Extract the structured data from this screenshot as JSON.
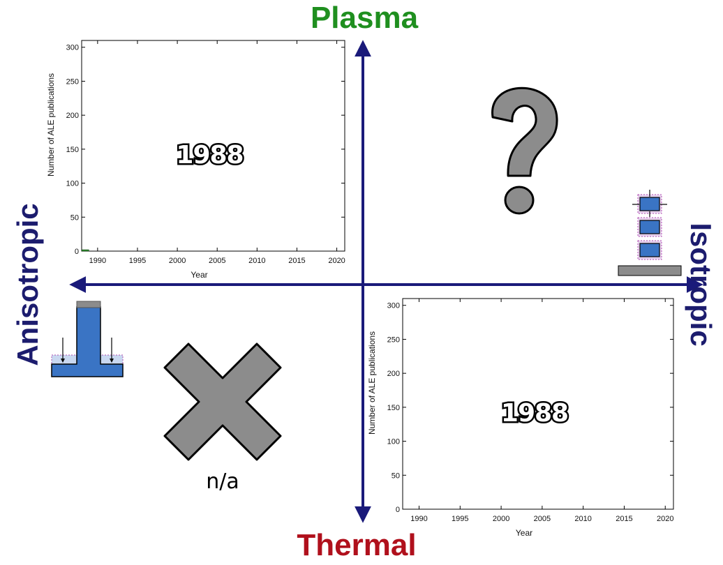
{
  "quadrant_labels": {
    "top": "Plasma",
    "bottom": "Thermal",
    "left": "Anisotropic",
    "right": "Isotropic"
  },
  "colors": {
    "axis_arrow": "#1a1a7a",
    "plasma": "#1f8f1f",
    "thermal": "#b0101c",
    "directional": "#1c1c6e",
    "symbol_gray": "#8c8c8c",
    "film_blue": "#3a74c4",
    "bar_plasma": "#2e8b2e"
  },
  "quadrant_symbols": {
    "top_right": "question-mark",
    "bottom_left": "cross-mark",
    "bottom_left_caption": "n/a"
  },
  "chart_data": [
    {
      "quadrant": "plasma-anisotropic",
      "type": "bar",
      "overlay_text": "1988",
      "xlabel": "Year",
      "ylabel": "Number of ALE publications",
      "xlim": [
        1988,
        2021
      ],
      "ylim": [
        0,
        310
      ],
      "xticks": [
        1990,
        1995,
        2000,
        2005,
        2010,
        2015,
        2020
      ],
      "yticks": [
        0,
        50,
        100,
        150,
        200,
        250,
        300
      ],
      "x": [
        1988
      ],
      "values": [
        1
      ],
      "grid": false
    },
    {
      "quadrant": "thermal-isotropic",
      "type": "bar",
      "overlay_text": "1988",
      "xlabel": "Year",
      "ylabel": "Number of ALE publications",
      "xlim": [
        1988,
        2021
      ],
      "ylim": [
        0,
        310
      ],
      "xticks": [
        1990,
        1995,
        2000,
        2005,
        2010,
        2015,
        2020
      ],
      "yticks": [
        0,
        50,
        100,
        150,
        200,
        250,
        300
      ],
      "x": [
        1988
      ],
      "values": [
        0
      ],
      "grid": false
    }
  ]
}
